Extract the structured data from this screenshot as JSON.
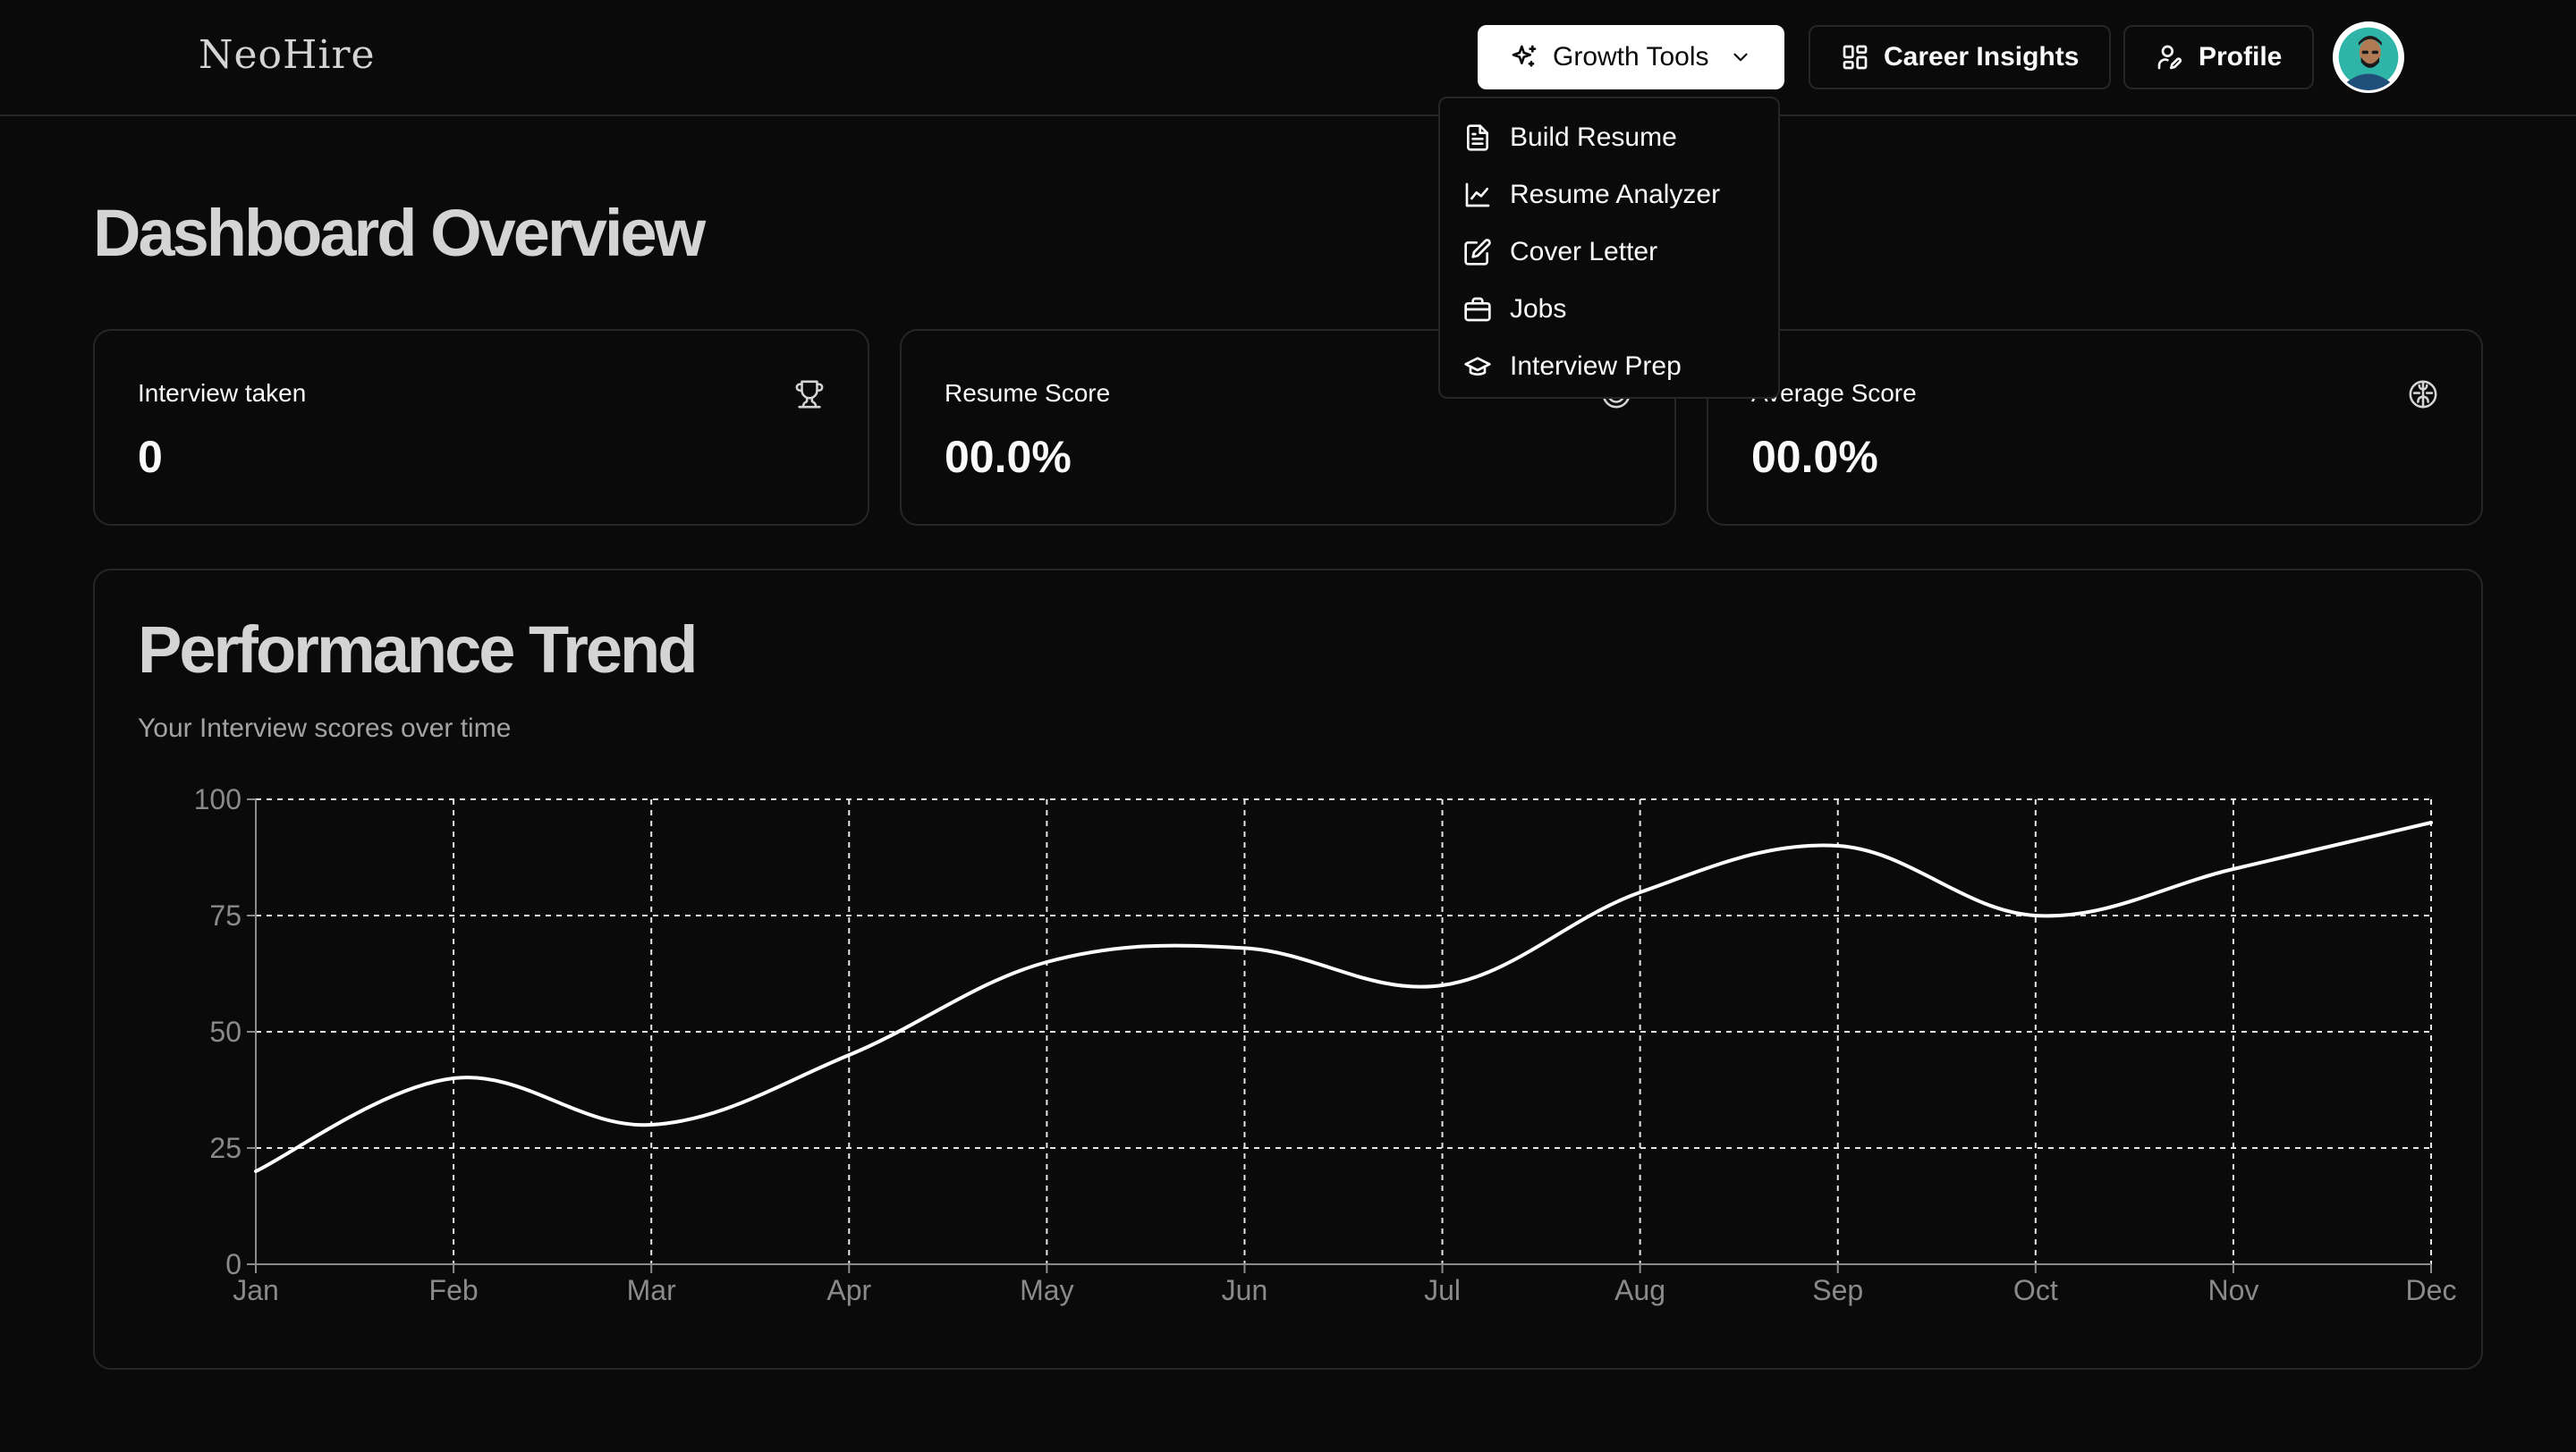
{
  "header": {
    "logo": "NeoHire",
    "nav": {
      "growth_tools": "Growth Tools",
      "career_insights": "Career Insights",
      "profile": "Profile"
    }
  },
  "dropdown": {
    "items": [
      {
        "label": "Build Resume",
        "icon": "file-text-icon"
      },
      {
        "label": "Resume Analyzer",
        "icon": "line-chart-icon"
      },
      {
        "label": "Cover Letter",
        "icon": "edit-icon"
      },
      {
        "label": "Jobs",
        "icon": "briefcase-icon"
      },
      {
        "label": "Interview Prep",
        "icon": "graduation-cap-icon"
      }
    ]
  },
  "page": {
    "title": "Dashboard Overview"
  },
  "stats": [
    {
      "label": "Interview taken",
      "value": "0",
      "icon": "trophy-icon"
    },
    {
      "label": "Resume Score",
      "value": "00.0%",
      "icon": "target-icon"
    },
    {
      "label": "Average Score",
      "value": "00.0%",
      "icon": "brain-icon"
    }
  ],
  "chart": {
    "title": "Performance Trend",
    "subtitle": "Your Interview scores over time"
  },
  "chart_data": {
    "type": "line",
    "categories": [
      "Jan",
      "Feb",
      "Mar",
      "Apr",
      "May",
      "Jun",
      "Jul",
      "Aug",
      "Sep",
      "Oct",
      "Nov",
      "Dec"
    ],
    "series": [
      {
        "values": [
          20,
          40,
          30,
          45,
          65,
          68,
          60,
          80,
          90,
          75,
          85,
          95
        ]
      }
    ],
    "yticks": [
      0,
      25,
      50,
      75,
      100
    ],
    "ylim": [
      0,
      100
    ],
    "grid": true,
    "colors": {
      "line": "#ffffff",
      "grid": "#e5e5e5"
    }
  }
}
